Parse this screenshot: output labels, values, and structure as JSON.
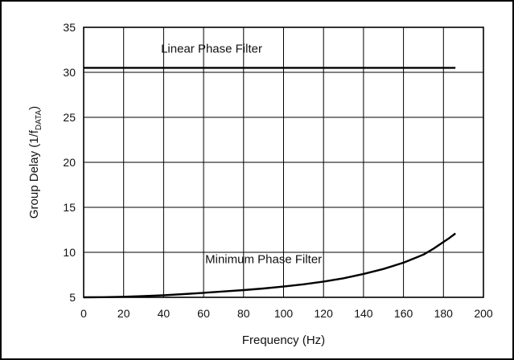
{
  "chart_data": {
    "type": "line",
    "xlabel": "Frequency (Hz)",
    "ylabel_main": "Group Delay (1/f",
    "ylabel_sub": "DATA",
    "ylabel_end": ")",
    "xlim": [
      0,
      200
    ],
    "ylim": [
      5,
      35
    ],
    "xticks": [
      0,
      20,
      40,
      60,
      80,
      100,
      120,
      140,
      160,
      180,
      200
    ],
    "yticks": [
      5,
      10,
      15,
      20,
      25,
      30,
      35
    ],
    "grid": true,
    "series": [
      {
        "name": "Linear Phase Filter",
        "x": [
          0,
          186
        ],
        "y": [
          30.5,
          30.5
        ]
      },
      {
        "name": "Minimum Phase Filter",
        "x": [
          0,
          10,
          20,
          30,
          40,
          50,
          60,
          70,
          80,
          90,
          100,
          110,
          120,
          130,
          140,
          150,
          160,
          170,
          175,
          180,
          183,
          186
        ],
        "y": [
          5.0,
          5.02,
          5.06,
          5.13,
          5.23,
          5.36,
          5.5,
          5.65,
          5.8,
          5.98,
          6.2,
          6.45,
          6.75,
          7.12,
          7.6,
          8.15,
          8.85,
          9.75,
          10.4,
          11.15,
          11.6,
          12.1
        ]
      }
    ]
  }
}
